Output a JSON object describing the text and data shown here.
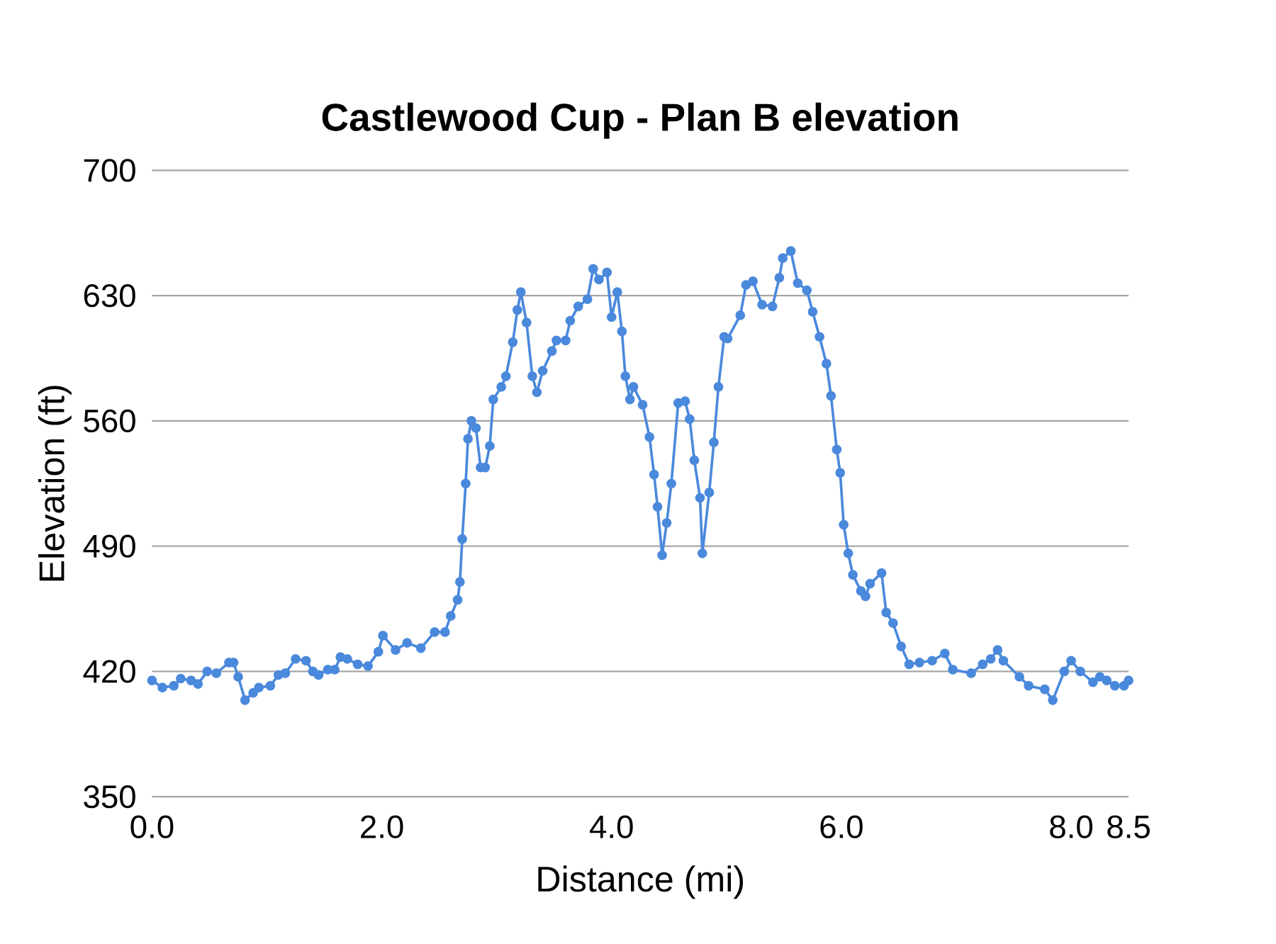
{
  "chart_data": {
    "type": "line",
    "title": "Castlewood Cup - Plan B elevation",
    "xlabel": "Distance (mi)",
    "ylabel": "Elevation (ft)",
    "xlim": [
      0,
      8.5
    ],
    "ylim": [
      350,
      700
    ],
    "xticks": [
      {
        "value": 0,
        "label": "0.0"
      },
      {
        "value": 2,
        "label": "2.0"
      },
      {
        "value": 4,
        "label": "4.0"
      },
      {
        "value": 6,
        "label": "6.0"
      },
      {
        "value": 8,
        "label": "8.0"
      },
      {
        "value": 8.5,
        "label": "8.5"
      }
    ],
    "yticks": [
      350,
      420,
      490,
      560,
      630,
      700
    ],
    "grid": "y",
    "marker": "circle",
    "line_style": "solid",
    "series": [
      {
        "color": "#4a89dc",
        "x": [
          0.0,
          0.09,
          0.19,
          0.25,
          0.34,
          0.4,
          0.48,
          0.56,
          0.67,
          0.71,
          0.75,
          0.81,
          0.88,
          0.93,
          1.03,
          1.1,
          1.16,
          1.25,
          1.34,
          1.4,
          1.45,
          1.53,
          1.59,
          1.64,
          1.7,
          1.79,
          1.88,
          1.97,
          2.01,
          2.12,
          2.22,
          2.34,
          2.46,
          2.55,
          2.6,
          2.66,
          2.68,
          2.7,
          2.73,
          2.75,
          2.78,
          2.82,
          2.86,
          2.9,
          2.94,
          2.97,
          3.04,
          3.08,
          3.14,
          3.18,
          3.21,
          3.26,
          3.31,
          3.35,
          3.4,
          3.48,
          3.52,
          3.6,
          3.64,
          3.71,
          3.79,
          3.84,
          3.89,
          3.96,
          4.0,
          4.05,
          4.09,
          4.12,
          4.16,
          4.19,
          4.27,
          4.33,
          4.37,
          4.4,
          4.44,
          4.48,
          4.52,
          4.58,
          4.64,
          4.68,
          4.72,
          4.77,
          4.79,
          4.85,
          4.89,
          4.93,
          4.98,
          5.01,
          5.12,
          5.17,
          5.23,
          5.31,
          5.4,
          5.46,
          5.49,
          5.56,
          5.62,
          5.7,
          5.75,
          5.81,
          5.87,
          5.91,
          5.96,
          5.99,
          6.02,
          6.06,
          6.1,
          6.17,
          6.21,
          6.25,
          6.35,
          6.39,
          6.45,
          6.52,
          6.59,
          6.68,
          6.79,
          6.9,
          6.97,
          7.13,
          7.23,
          7.3,
          7.36,
          7.41,
          7.55,
          7.63,
          7.77,
          7.84,
          7.94,
          8.0,
          8.08,
          8.19,
          8.25,
          8.31,
          8.38,
          8.46,
          8.5
        ],
        "values": [
          415,
          411,
          412,
          416,
          415,
          413,
          420,
          419,
          425,
          425,
          417,
          404,
          408,
          411,
          412,
          418,
          419,
          427,
          426,
          420,
          418,
          421,
          421,
          428,
          427,
          424,
          423,
          431,
          440,
          432,
          436,
          433,
          442,
          442,
          451,
          460,
          470,
          494,
          525,
          550,
          560,
          556,
          534,
          534,
          546,
          572,
          579,
          585,
          604,
          622,
          632,
          615,
          585,
          576,
          588,
          599,
          605,
          605,
          616,
          624,
          628,
          645,
          639,
          643,
          618,
          632,
          610,
          585,
          572,
          579,
          569,
          551,
          530,
          512,
          485,
          503,
          525,
          570,
          571,
          561,
          538,
          517,
          486,
          520,
          548,
          579,
          607,
          606,
          619,
          636,
          638,
          625,
          624,
          640,
          651,
          655,
          637,
          633,
          621,
          607,
          592,
          574,
          544,
          531,
          502,
          486,
          474,
          465,
          462,
          469,
          475,
          453,
          447,
          434,
          424,
          425,
          426,
          430,
          421,
          419,
          424,
          427,
          432,
          426,
          417,
          412,
          410,
          404,
          420,
          426,
          420,
          414,
          417,
          415,
          412,
          412,
          415
        ]
      }
    ]
  }
}
